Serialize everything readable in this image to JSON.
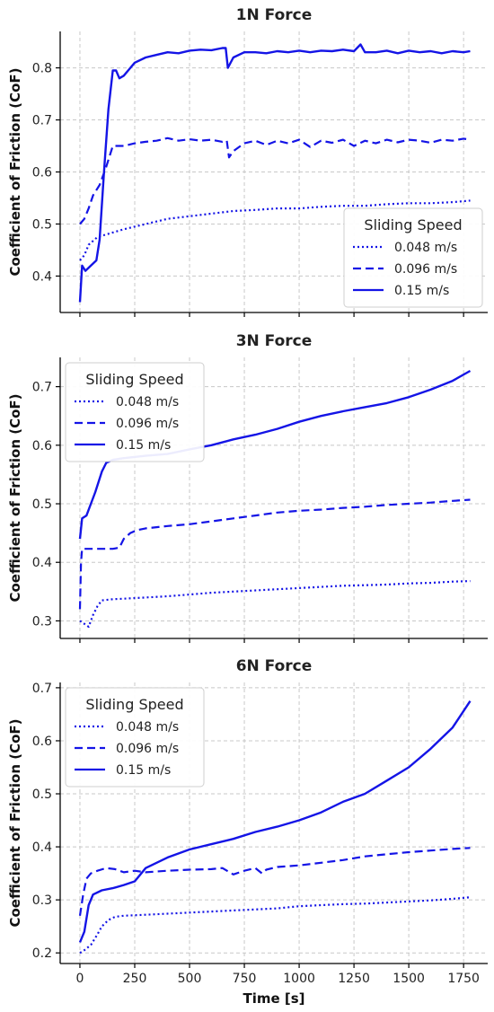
{
  "colors": {
    "series": "#1414e6",
    "grid": "#c8c8c8",
    "axis": "#000000",
    "legend_border": "#cfcfcf"
  },
  "chart_data": [
    {
      "type": "line",
      "title": "1N Force",
      "ylabel": "Coefficient of Friction (CoF)",
      "xlabel": "",
      "xlim": [
        -90,
        1860
      ],
      "ylim": [
        0.33,
        0.87
      ],
      "xticks": [
        0,
        250,
        500,
        750,
        1000,
        1250,
        1500,
        1750
      ],
      "show_xtick_labels": false,
      "yticks": [
        0.4,
        0.5,
        0.6,
        0.7,
        0.8
      ],
      "ytick_labels": [
        "0.4",
        "0.5",
        "0.6",
        "0.7",
        "0.8"
      ],
      "grid": true,
      "legend": {
        "title": "Sliding Speed",
        "position": "lower-right"
      },
      "series": [
        {
          "name": "0.048 m/s",
          "style": "dotted",
          "x": [
            0,
            20,
            40,
            80,
            120,
            200,
            300,
            400,
            500,
            600,
            700,
            800,
            900,
            1000,
            1100,
            1200,
            1300,
            1400,
            1500,
            1600,
            1700,
            1780
          ],
          "y": [
            0.43,
            0.44,
            0.46,
            0.475,
            0.48,
            0.49,
            0.5,
            0.51,
            0.515,
            0.52,
            0.525,
            0.527,
            0.53,
            0.53,
            0.533,
            0.535,
            0.535,
            0.538,
            0.54,
            0.54,
            0.542,
            0.545
          ]
        },
        {
          "name": "0.096 m/s",
          "style": "dashed",
          "x": [
            0,
            20,
            40,
            60,
            90,
            120,
            150,
            200,
            250,
            300,
            350,
            400,
            450,
            500,
            550,
            600,
            650,
            670,
            680,
            700,
            750,
            800,
            850,
            900,
            950,
            1000,
            1050,
            1100,
            1150,
            1200,
            1250,
            1300,
            1350,
            1400,
            1450,
            1500,
            1550,
            1600,
            1650,
            1700,
            1750,
            1780
          ],
          "y": [
            0.5,
            0.51,
            0.53,
            0.555,
            0.575,
            0.61,
            0.65,
            0.65,
            0.655,
            0.658,
            0.66,
            0.665,
            0.66,
            0.663,
            0.66,
            0.662,
            0.658,
            0.66,
            0.628,
            0.64,
            0.655,
            0.66,
            0.652,
            0.66,
            0.655,
            0.662,
            0.648,
            0.66,
            0.656,
            0.662,
            0.65,
            0.66,
            0.655,
            0.662,
            0.657,
            0.662,
            0.66,
            0.656,
            0.662,
            0.66,
            0.664,
            0.662
          ]
        },
        {
          "name": "0.15 m/s",
          "style": "solid",
          "x": [
            0,
            10,
            25,
            50,
            75,
            90,
            110,
            130,
            150,
            165,
            180,
            200,
            230,
            250,
            300,
            350,
            400,
            450,
            500,
            550,
            600,
            650,
            665,
            675,
            700,
            750,
            800,
            850,
            900,
            950,
            1000,
            1050,
            1100,
            1150,
            1200,
            1250,
            1280,
            1300,
            1350,
            1400,
            1450,
            1500,
            1550,
            1600,
            1650,
            1700,
            1750,
            1780
          ],
          "y": [
            0.35,
            0.42,
            0.41,
            0.42,
            0.43,
            0.47,
            0.6,
            0.72,
            0.795,
            0.795,
            0.78,
            0.785,
            0.8,
            0.81,
            0.82,
            0.825,
            0.83,
            0.828,
            0.833,
            0.835,
            0.834,
            0.838,
            0.838,
            0.8,
            0.82,
            0.83,
            0.83,
            0.828,
            0.832,
            0.83,
            0.833,
            0.83,
            0.833,
            0.832,
            0.835,
            0.832,
            0.845,
            0.83,
            0.83,
            0.833,
            0.828,
            0.833,
            0.83,
            0.832,
            0.828,
            0.832,
            0.83,
            0.832
          ]
        }
      ]
    },
    {
      "type": "line",
      "title": "3N Force",
      "ylabel": "Coefficient of Friction (CoF)",
      "xlabel": "",
      "xlim": [
        -90,
        1860
      ],
      "ylim": [
        0.27,
        0.75
      ],
      "xticks": [
        0,
        250,
        500,
        750,
        1000,
        1250,
        1500,
        1750
      ],
      "show_xtick_labels": false,
      "yticks": [
        0.3,
        0.4,
        0.5,
        0.6,
        0.7
      ],
      "ytick_labels": [
        "0.3",
        "0.4",
        "0.5",
        "0.6",
        "0.7"
      ],
      "grid": true,
      "legend": {
        "title": "Sliding Speed",
        "position": "top-left"
      },
      "series": [
        {
          "name": "0.048 m/s",
          "style": "dotted",
          "x": [
            0,
            20,
            40,
            60,
            80,
            100,
            150,
            200,
            300,
            400,
            500,
            600,
            700,
            800,
            900,
            1000,
            1100,
            1200,
            1300,
            1400,
            1500,
            1600,
            1700,
            1780
          ],
          "y": [
            0.3,
            0.295,
            0.29,
            0.31,
            0.325,
            0.335,
            0.337,
            0.338,
            0.34,
            0.342,
            0.345,
            0.348,
            0.35,
            0.352,
            0.354,
            0.356,
            0.358,
            0.36,
            0.361,
            0.362,
            0.364,
            0.365,
            0.367,
            0.368
          ]
        },
        {
          "name": "0.096 m/s",
          "style": "dashed",
          "x": [
            0,
            5,
            10,
            20,
            50,
            100,
            150,
            180,
            200,
            230,
            260,
            300,
            400,
            500,
            600,
            700,
            800,
            900,
            1000,
            1100,
            1200,
            1300,
            1400,
            1500,
            1600,
            1700,
            1780
          ],
          "y": [
            0.32,
            0.4,
            0.423,
            0.423,
            0.423,
            0.423,
            0.423,
            0.425,
            0.44,
            0.45,
            0.455,
            0.458,
            0.462,
            0.465,
            0.47,
            0.475,
            0.48,
            0.485,
            0.488,
            0.49,
            0.493,
            0.495,
            0.498,
            0.5,
            0.502,
            0.505,
            0.507
          ]
        },
        {
          "name": "0.15 m/s",
          "style": "solid",
          "x": [
            0,
            10,
            30,
            50,
            70,
            100,
            120,
            150,
            200,
            300,
            400,
            500,
            600,
            700,
            800,
            900,
            1000,
            1100,
            1200,
            1300,
            1400,
            1500,
            1600,
            1700,
            1780
          ],
          "y": [
            0.44,
            0.475,
            0.48,
            0.5,
            0.52,
            0.555,
            0.57,
            0.575,
            0.578,
            0.582,
            0.585,
            0.593,
            0.6,
            0.61,
            0.618,
            0.628,
            0.64,
            0.65,
            0.658,
            0.665,
            0.672,
            0.682,
            0.695,
            0.71,
            0.727
          ]
        }
      ]
    },
    {
      "type": "line",
      "title": "6N Force",
      "ylabel": "Coefficient of Friction (CoF)",
      "xlabel": "Time [s]",
      "xlim": [
        -90,
        1860
      ],
      "ylim": [
        0.18,
        0.71
      ],
      "xticks": [
        0,
        250,
        500,
        750,
        1000,
        1250,
        1500,
        1750
      ],
      "show_xtick_labels": true,
      "xtick_labels": [
        "0",
        "250",
        "500",
        "750",
        "1000",
        "1250",
        "1500",
        "1750"
      ],
      "yticks": [
        0.2,
        0.3,
        0.4,
        0.5,
        0.6,
        0.7
      ],
      "ytick_labels": [
        "0.2",
        "0.3",
        "0.4",
        "0.5",
        "0.6",
        "0.7"
      ],
      "grid": true,
      "legend": {
        "title": "Sliding Speed",
        "position": "top-left"
      },
      "series": [
        {
          "name": "0.048 m/s",
          "style": "dotted",
          "x": [
            0,
            20,
            50,
            80,
            100,
            130,
            160,
            200,
            300,
            400,
            500,
            600,
            700,
            800,
            900,
            1000,
            1100,
            1200,
            1300,
            1400,
            1500,
            1600,
            1700,
            1780
          ],
          "y": [
            0.2,
            0.205,
            0.215,
            0.235,
            0.25,
            0.262,
            0.268,
            0.27,
            0.272,
            0.274,
            0.276,
            0.278,
            0.28,
            0.282,
            0.284,
            0.288,
            0.29,
            0.292,
            0.293,
            0.295,
            0.297,
            0.299,
            0.302,
            0.305
          ]
        },
        {
          "name": "0.096 m/s",
          "style": "dashed",
          "x": [
            0,
            15,
            30,
            50,
            80,
            120,
            160,
            200,
            250,
            300,
            400,
            500,
            600,
            650,
            700,
            750,
            800,
            830,
            850,
            900,
            1000,
            1100,
            1200,
            1300,
            1400,
            1500,
            1600,
            1700,
            1780
          ],
          "y": [
            0.27,
            0.31,
            0.34,
            0.35,
            0.355,
            0.36,
            0.358,
            0.352,
            0.355,
            0.352,
            0.355,
            0.357,
            0.358,
            0.36,
            0.348,
            0.355,
            0.36,
            0.35,
            0.357,
            0.362,
            0.365,
            0.37,
            0.375,
            0.382,
            0.386,
            0.39,
            0.393,
            0.396,
            0.398
          ]
        },
        {
          "name": "0.15 m/s",
          "style": "solid",
          "x": [
            0,
            20,
            40,
            60,
            100,
            150,
            200,
            250,
            300,
            400,
            500,
            600,
            700,
            800,
            900,
            1000,
            1100,
            1200,
            1300,
            1400,
            1500,
            1600,
            1700,
            1780
          ],
          "y": [
            0.22,
            0.24,
            0.29,
            0.31,
            0.318,
            0.322,
            0.328,
            0.335,
            0.36,
            0.38,
            0.395,
            0.405,
            0.415,
            0.428,
            0.438,
            0.45,
            0.465,
            0.485,
            0.5,
            0.525,
            0.55,
            0.585,
            0.625,
            0.675
          ]
        }
      ]
    }
  ]
}
